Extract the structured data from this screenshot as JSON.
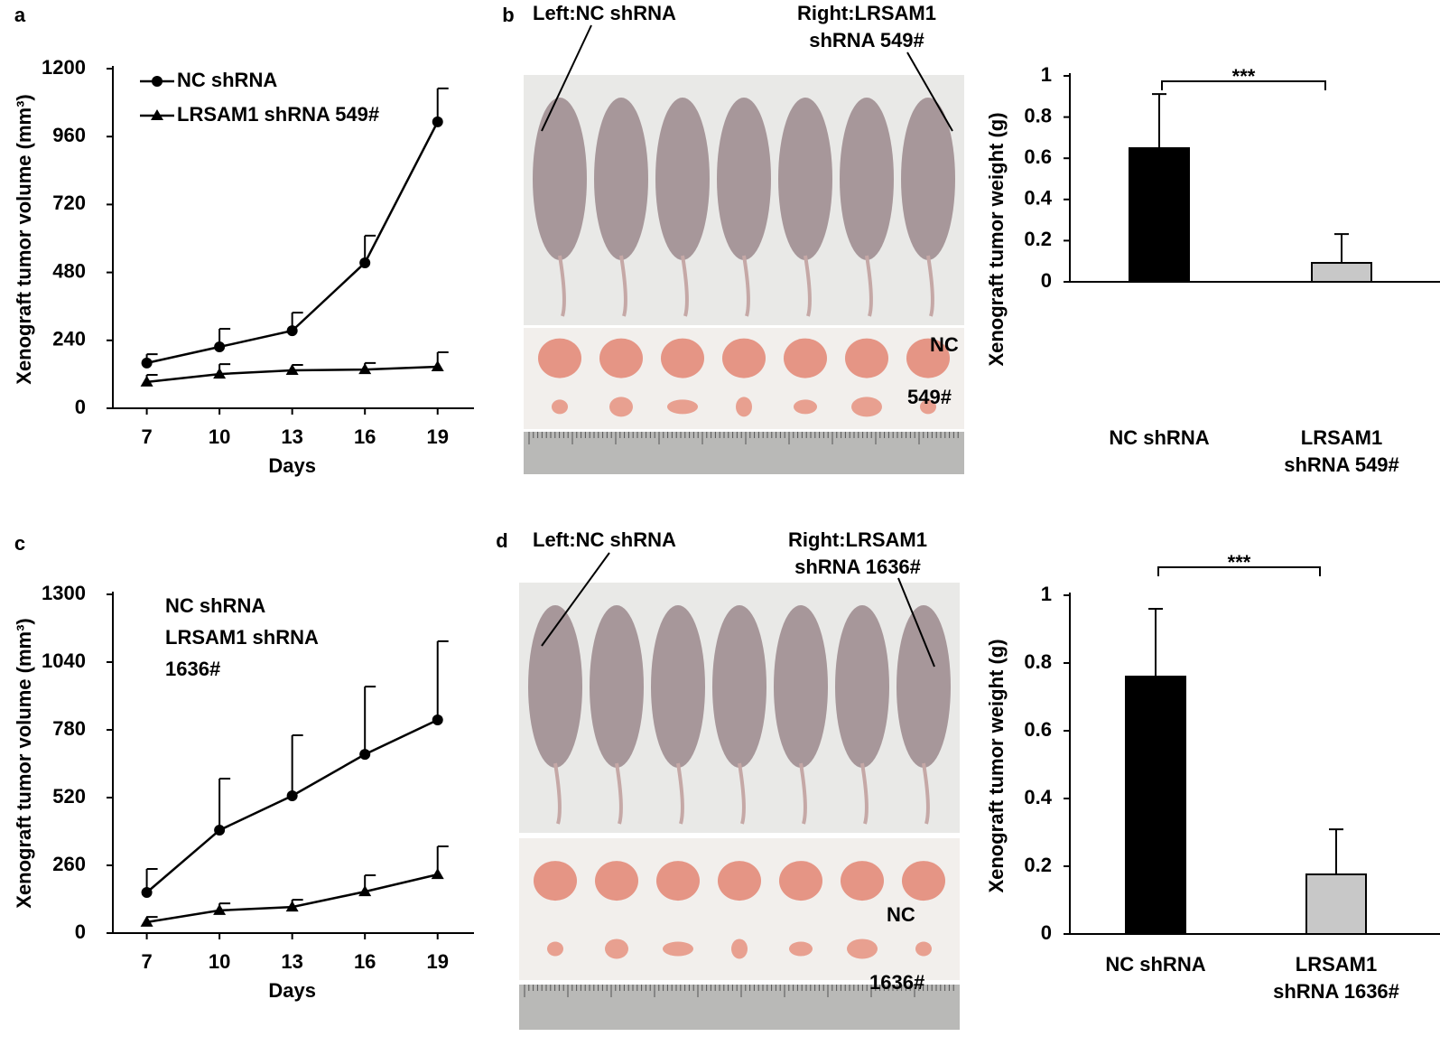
{
  "chart_data": [
    {
      "type": "line",
      "panel": "a",
      "x_label": "Days",
      "y_label": "Xenograft tumor volume (mm³)",
      "x": [
        7,
        10,
        13,
        16,
        19
      ],
      "xlim": [
        5.6,
        20.5
      ],
      "xticks": [
        7,
        10,
        13,
        16,
        19
      ],
      "ylim": [
        0,
        1200
      ],
      "yticks": [
        0,
        240,
        480,
        720,
        960,
        1200
      ],
      "legend": "upper left",
      "legend_markers": true,
      "series": [
        {
          "name": "NC shRNA",
          "color": "#000000",
          "marker": "circle",
          "values": [
            160,
            217,
            274,
            514,
            1012
          ],
          "errors": [
            31,
            64,
            64,
            96,
            118
          ]
        },
        {
          "name": "LRSAM1 shRNA 549#",
          "color": "#000000",
          "marker": "triangle",
          "values": [
            93,
            121,
            134,
            137,
            147
          ],
          "errors": [
            25,
            35,
            19,
            23,
            51
          ]
        }
      ]
    },
    {
      "type": "bar",
      "panel": "b",
      "y_label": "Xenograft tumor weight (g)",
      "categories": [
        "NC shRNA",
        "LRSAM1 shRNA 549#"
      ],
      "values": [
        0.649,
        0.092
      ],
      "errors": [
        0.263,
        0.14
      ],
      "colors": [
        "#000000",
        "#c8c8c8"
      ],
      "ylim": [
        0,
        1
      ],
      "yticks": [
        0,
        0.2,
        0.4,
        0.6,
        0.8,
        1
      ],
      "significance": "***"
    },
    {
      "type": "line",
      "panel": "c",
      "x_label": "Days",
      "y_label": "Xenograft tumor volume (mm³)",
      "x": [
        7,
        10,
        13,
        16,
        19
      ],
      "xlim": [
        5.6,
        20.5
      ],
      "xticks": [
        7,
        10,
        13,
        16,
        19
      ],
      "ylim": [
        0,
        1300
      ],
      "yticks": [
        0,
        260,
        520,
        780,
        1040,
        1300
      ],
      "legend": "upper left",
      "legend_markers": false,
      "series": [
        {
          "name": "NC shRNA",
          "color": "#000000",
          "marker": "circle",
          "values": [
            156,
            395,
            527,
            686,
            818
          ],
          "errors": [
            90,
            198,
            232,
            260,
            302
          ]
        },
        {
          "name": "LRSAM1 shRNA 1636#",
          "color": "#000000",
          "marker": "triangle",
          "values": [
            42,
            87,
            100,
            159,
            225
          ],
          "errors": [
            20,
            27,
            28,
            63,
            108
          ]
        }
      ]
    },
    {
      "type": "bar",
      "panel": "d",
      "y_label": "Xenograft tumor weight (g)",
      "categories": [
        "NC shRNA",
        "LRSAM1 shRNA 1636#"
      ],
      "values": [
        0.76,
        0.176
      ],
      "errors": [
        0.2,
        0.133
      ],
      "colors": [
        "#000000",
        "#c8c8c8"
      ],
      "ylim": [
        0,
        1
      ],
      "yticks": [
        0,
        0.2,
        0.4,
        0.6,
        0.8,
        1
      ],
      "significance": "***"
    }
  ],
  "photos": [
    {
      "left_label": "Left:NC shRNA",
      "right_label": "Right:LRSAM1 shRNA 549#",
      "upper_row": "NC",
      "lower_row": "549#"
    },
    {
      "left_label": "Left:NC shRNA",
      "right_label": "Right:LRSAM1 shRNA 1636#",
      "upper_row": "NC",
      "lower_row": "1636#"
    }
  ]
}
